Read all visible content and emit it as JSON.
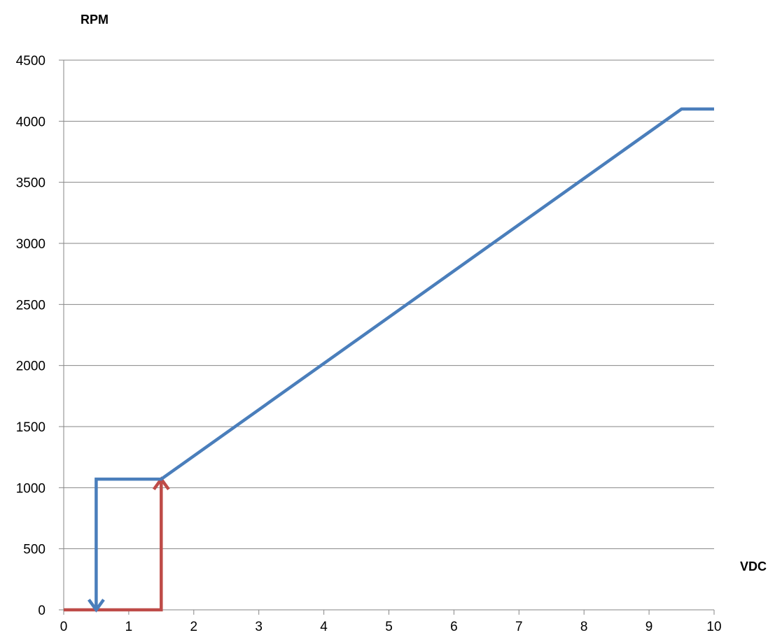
{
  "chart_data": {
    "type": "line",
    "title": "",
    "xlabel": "VDC",
    "ylabel": "RPM",
    "xlim": [
      0,
      10
    ],
    "ylim": [
      0,
      4500
    ],
    "x_ticks": [
      0,
      1,
      2,
      3,
      4,
      5,
      6,
      7,
      8,
      9,
      10
    ],
    "y_ticks": [
      0,
      500,
      1000,
      1500,
      2000,
      2500,
      3000,
      3500,
      4000,
      4500
    ],
    "grid": "horizontal",
    "legend": "none",
    "series": [
      {
        "color": "#4a7ebb",
        "arrow_at_end": true,
        "points": [
          [
            10,
            4100
          ],
          [
            9.5,
            4100
          ],
          [
            1.5,
            1070
          ],
          [
            0.5,
            1070
          ],
          [
            0.5,
            0
          ]
        ]
      },
      {
        "color": "#be4b48",
        "arrow_at_end": true,
        "points": [
          [
            0,
            0
          ],
          [
            1.5,
            0
          ],
          [
            1.5,
            1070
          ]
        ]
      }
    ]
  }
}
